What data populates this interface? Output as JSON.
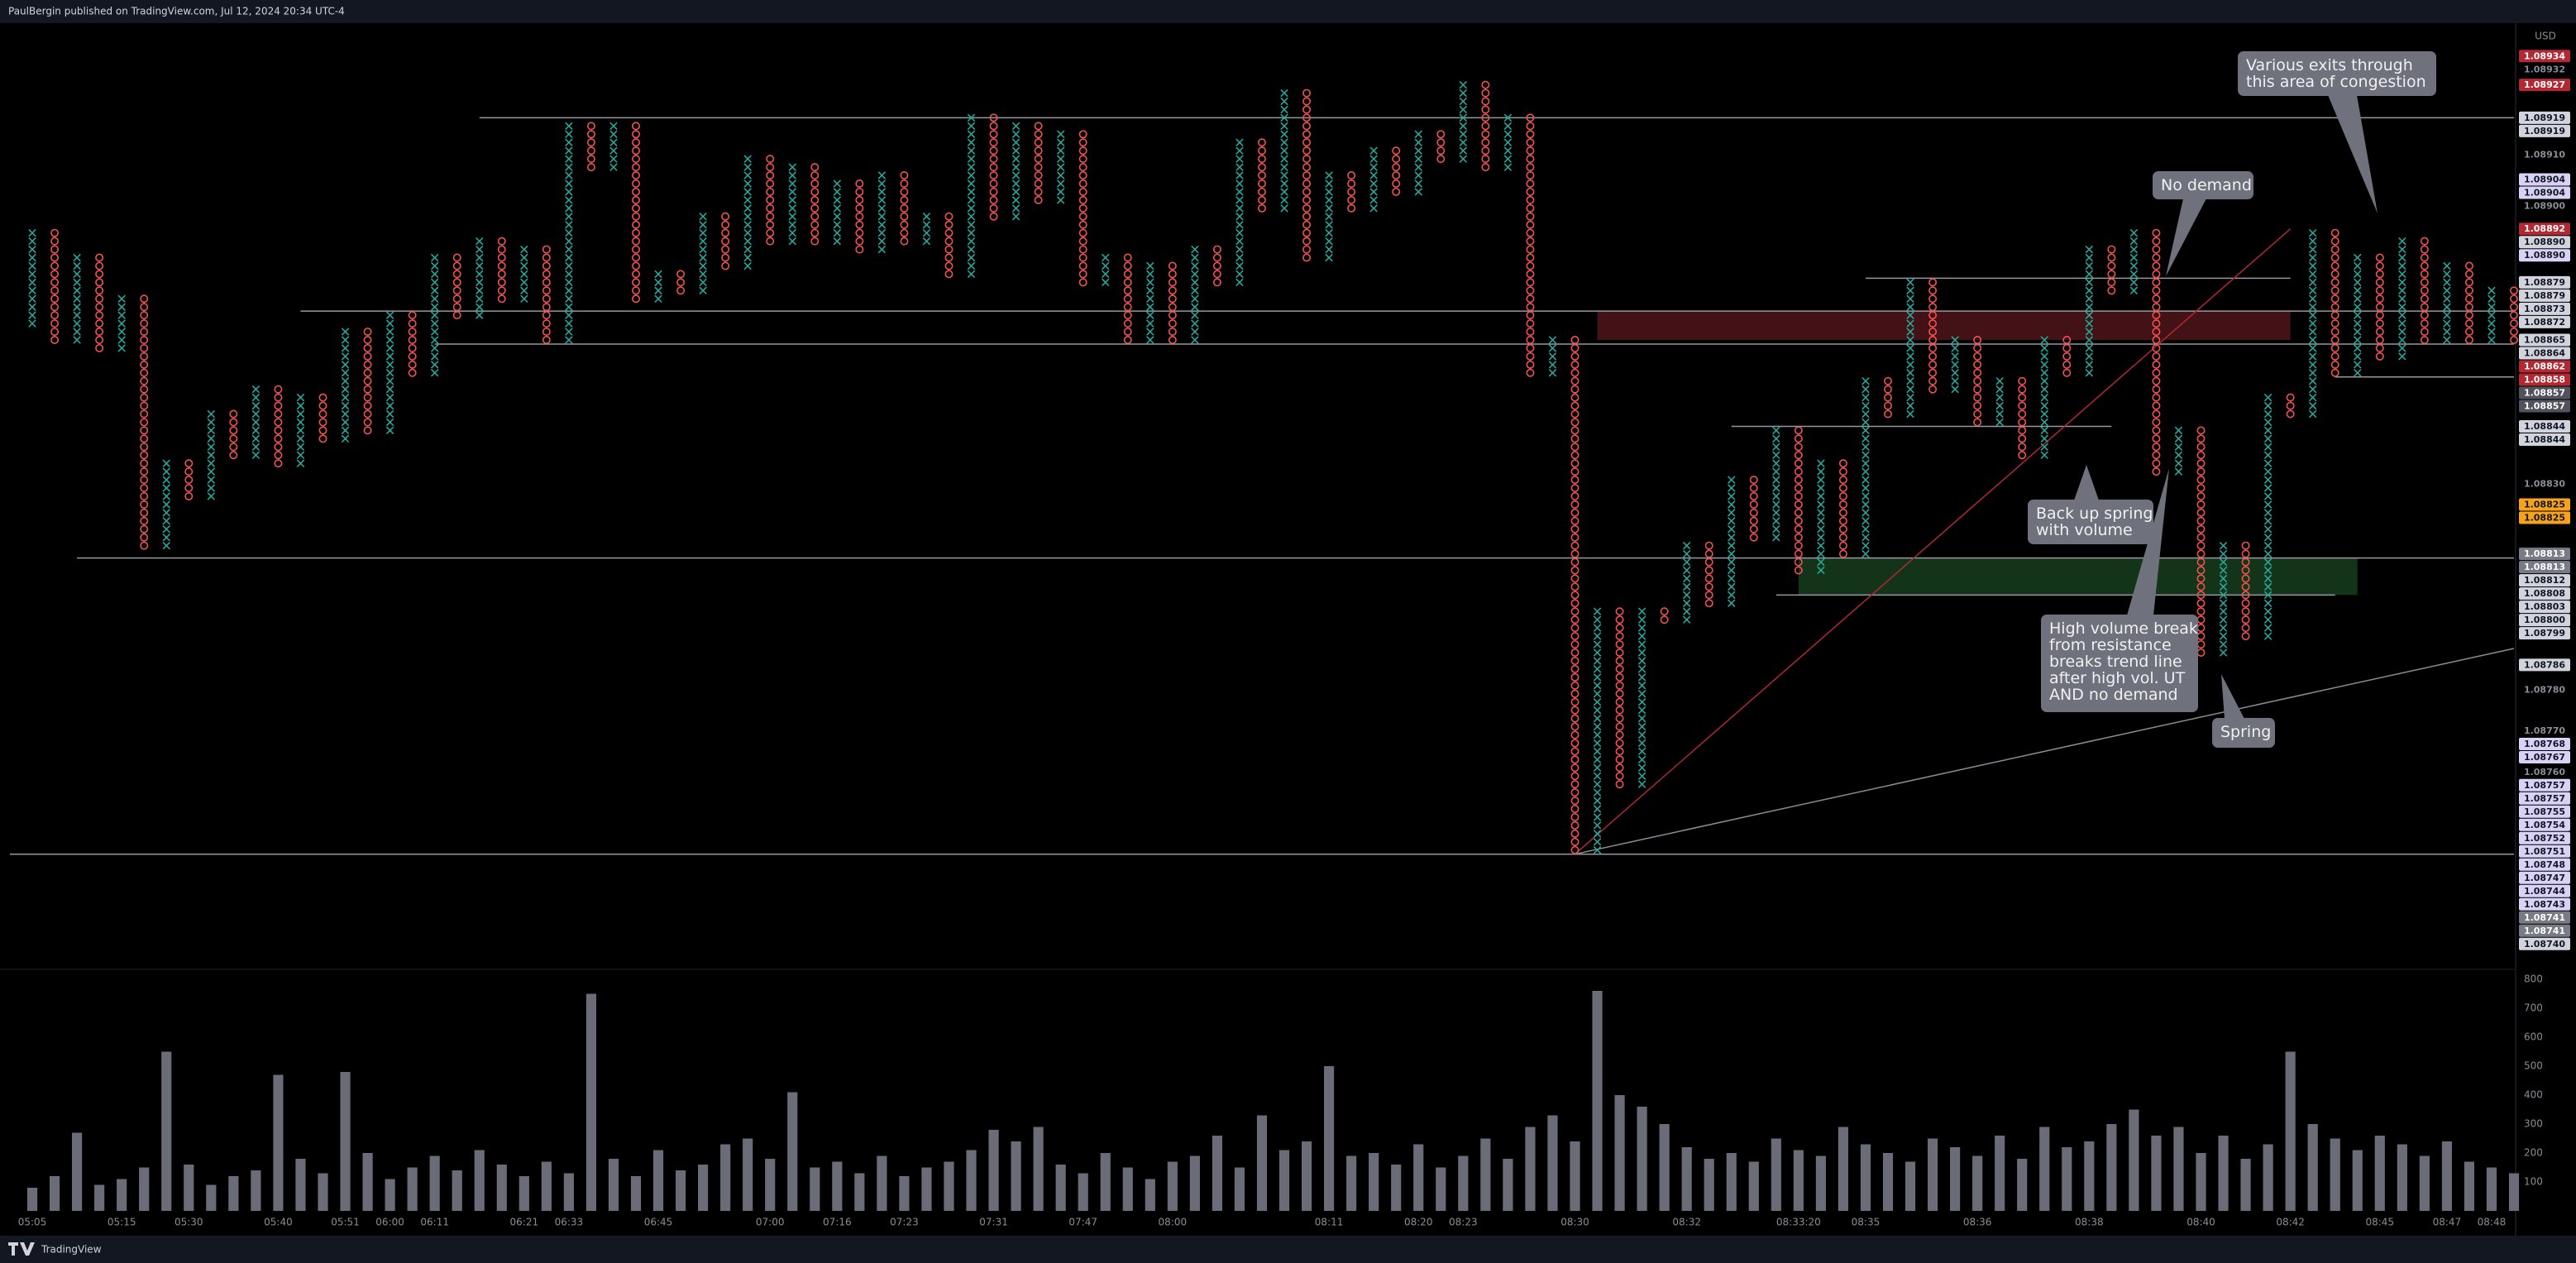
{
  "header": {
    "text": "PaulBergin published on TradingView.com, Jul 12, 2024 20:34 UTC-4"
  },
  "footer": {
    "brand": "TradingView"
  },
  "chart_data": [
    {
      "type": "pnf",
      "currency": "USD",
      "box_size": 2e-05,
      "up_color": "#26a69a",
      "down_color": "#ef5350",
      "ylim": [
        1.08712,
        1.08942
      ],
      "values": [
        1.08868,
        1.08892,
        1.08864,
        1.08886,
        1.08862,
        1.08876,
        1.08814,
        1.08836,
        1.08826,
        1.08848,
        1.08836,
        1.08854,
        1.08834,
        1.08852,
        1.0884,
        1.08868,
        1.08842,
        1.08872,
        1.08856,
        1.08886,
        1.0887,
        1.0889,
        1.08874,
        1.08888,
        1.08864,
        1.08918,
        1.08906,
        1.08918,
        1.08874,
        1.08882,
        1.08876,
        1.08896,
        1.08882,
        1.0891,
        1.08888,
        1.08908,
        1.08888,
        1.08904,
        1.08886,
        1.08906,
        1.08888,
        1.08896,
        1.0888,
        1.0892,
        1.08894,
        1.08918,
        1.08898,
        1.08916,
        1.08878,
        1.08886,
        1.08864,
        1.08884,
        1.08864,
        1.08888,
        1.08878,
        1.08914,
        1.08896,
        1.08926,
        1.08884,
        1.08906,
        1.08896,
        1.08912,
        1.089,
        1.08916,
        1.08908,
        1.08928,
        1.08906,
        1.0892,
        1.08856,
        1.08866,
        1.0874,
        1.088,
        1.08756,
        1.088,
        1.08796,
        1.08816,
        1.088,
        1.08832,
        1.08816,
        1.08844,
        1.08808,
        1.08836,
        1.08812,
        1.08856,
        1.08846,
        1.0888,
        1.08852,
        1.08866,
        1.08844,
        1.08856,
        1.08836,
        1.08866,
        1.08856,
        1.08888,
        1.08876,
        1.08892,
        1.08832,
        1.08844,
        1.08788,
        1.08816,
        1.08792,
        1.08852,
        1.08846,
        1.08892,
        1.08856,
        1.08886,
        1.0886,
        1.0889,
        1.08864,
        1.08884,
        1.08864,
        1.08878,
        1.08864
      ],
      "xticks": [
        {
          "value": 1,
          "label": "05:05"
        },
        {
          "value": 5,
          "label": "05:15"
        },
        {
          "value": 8,
          "label": "05:30"
        },
        {
          "value": 12,
          "label": "05:40"
        },
        {
          "value": 15,
          "label": "05:51"
        },
        {
          "value": 17,
          "label": "06:00"
        },
        {
          "value": 19,
          "label": "06:11"
        },
        {
          "value": 23,
          "label": "06:21"
        },
        {
          "value": 25,
          "label": "06:33"
        },
        {
          "value": 29,
          "label": "06:45"
        },
        {
          "value": 34,
          "label": "07:00"
        },
        {
          "value": 37,
          "label": "07:16"
        },
        {
          "value": 40,
          "label": "07:23"
        },
        {
          "value": 44,
          "label": "07:31"
        },
        {
          "value": 48,
          "label": "07:47"
        },
        {
          "value": 52,
          "label": "08:00"
        },
        {
          "value": 59,
          "label": "08:11"
        },
        {
          "value": 63,
          "label": "08:20"
        },
        {
          "value": 65,
          "label": "08:23"
        },
        {
          "value": 70,
          "label": "08:30"
        },
        {
          "value": 75,
          "label": "08:32"
        },
        {
          "value": 80,
          "label": "08:33:20"
        },
        {
          "value": 83,
          "label": "08:35"
        },
        {
          "value": 88,
          "label": "08:36"
        },
        {
          "value": 93,
          "label": "08:38"
        },
        {
          "value": 98,
          "label": "08:40"
        },
        {
          "value": 102,
          "label": "08:42"
        },
        {
          "value": 106,
          "label": "08:45"
        },
        {
          "value": 109,
          "label": "08:47"
        },
        {
          "value": 111,
          "label": "08:48"
        }
      ],
      "price_labels": [
        {
          "value": 1.08934,
          "style": "red"
        },
        {
          "value": 1.08932,
          "style": "plain"
        },
        {
          "value": 1.08927,
          "style": "red"
        },
        {
          "value": 1.08919,
          "style": "light"
        },
        {
          "value": 1.08919,
          "style": "light"
        },
        {
          "value": 1.0891,
          "label": "1.08910",
          "style": "plain"
        },
        {
          "value": 1.08904,
          "style": "lavender"
        },
        {
          "value": 1.08904,
          "style": "lavender"
        },
        {
          "value": 1.089,
          "label": "1.08900",
          "style": "plain"
        },
        {
          "value": 1.08892,
          "style": "red"
        },
        {
          "value": 1.0889,
          "label": "1.08890",
          "style": "light"
        },
        {
          "value": 1.0889,
          "label": "1.08890",
          "style": "lavender"
        },
        {
          "value": 1.08879,
          "style": "light"
        },
        {
          "value": 1.08879,
          "style": "light"
        },
        {
          "value": 1.08873,
          "style": "light"
        },
        {
          "value": 1.08872,
          "style": "light"
        },
        {
          "value": 1.08865,
          "style": "light"
        },
        {
          "value": 1.08864,
          "style": "light"
        },
        {
          "value": 1.08862,
          "style": "red"
        },
        {
          "value": 1.08858,
          "style": "red"
        },
        {
          "value": 1.08857,
          "style": "dark"
        },
        {
          "value": 1.08857,
          "style": "dark"
        },
        {
          "value": 1.08844,
          "style": "light"
        },
        {
          "value": 1.08844,
          "style": "light"
        },
        {
          "value": 1.0883,
          "label": "1.08830",
          "style": "plain"
        },
        {
          "value": 1.08825,
          "style": "orange"
        },
        {
          "value": 1.08825,
          "style": "orange"
        },
        {
          "value": 1.08813,
          "style": "gray"
        },
        {
          "value": 1.08813,
          "style": "gray"
        },
        {
          "value": 1.08812,
          "style": "light"
        },
        {
          "value": 1.08808,
          "style": "light"
        },
        {
          "value": 1.08803,
          "style": "light"
        },
        {
          "value": 1.088,
          "label": "1.08800",
          "style": "light"
        },
        {
          "value": 1.08799,
          "style": "light"
        },
        {
          "value": 1.08786,
          "style": "light"
        },
        {
          "value": 1.0878,
          "label": "1.08780",
          "style": "plain"
        },
        {
          "value": 1.0877,
          "label": "1.08770",
          "style": "plain"
        },
        {
          "value": 1.08768,
          "style": "lavender"
        },
        {
          "value": 1.08767,
          "style": "lavender"
        },
        {
          "value": 1.0876,
          "label": "1.08760",
          "style": "plain"
        },
        {
          "value": 1.08757,
          "style": "lavender"
        },
        {
          "value": 1.08757,
          "style": "lavender"
        },
        {
          "value": 1.08755,
          "style": "lavender"
        },
        {
          "value": 1.08754,
          "style": "lavender"
        },
        {
          "value": 1.08752,
          "style": "lavender"
        },
        {
          "value": 1.08751,
          "style": "lavender"
        },
        {
          "value": 1.08748,
          "style": "lavender"
        },
        {
          "value": 1.08747,
          "style": "lavender"
        },
        {
          "value": 1.08744,
          "style": "lavender"
        },
        {
          "value": 1.08743,
          "style": "lavender"
        },
        {
          "value": 1.08741,
          "style": "gray"
        },
        {
          "value": 1.08741,
          "style": "gray"
        },
        {
          "value": 1.0874,
          "label": "1.08740",
          "style": "light"
        }
      ],
      "drawings": {
        "levels": [
          {
            "price": 1.08919,
            "from": 21,
            "to": 112
          },
          {
            "price": 1.08872,
            "from": 13,
            "to": 112
          },
          {
            "price": 1.08864,
            "from": 19,
            "to": 112
          },
          {
            "price": 1.08812,
            "from": 3,
            "to": 112
          },
          {
            "price": 1.0874,
            "from": 0,
            "to": 112
          },
          {
            "price": 1.0888,
            "from": 83,
            "to": 102
          },
          {
            "price": 1.08844,
            "from": 77,
            "to": 94
          },
          {
            "price": 1.08803,
            "from": 79,
            "to": 104
          },
          {
            "price": 1.08856,
            "from": 104,
            "to": 112
          }
        ],
        "zones": [
          {
            "top": 1.08872,
            "bottom": 1.08865,
            "from": 71,
            "to": 102,
            "color": "#4a1418"
          },
          {
            "top": 1.08812,
            "bottom": 1.08803,
            "from": 80,
            "to": 105,
            "color": "#163a1c"
          }
        ],
        "trend_lines": [
          {
            "from": [
              70,
              1.0874
            ],
            "to": [
              102,
              1.08892
            ],
            "color": "#b22833"
          },
          {
            "from": [
              70,
              1.0874
            ],
            "to": [
              112,
              1.0879
            ],
            "color": "#8a8d96"
          }
        ]
      },
      "annotations": [
        {
          "lines": [
            "Various exits through",
            "this area of congestion"
          ]
        },
        {
          "lines": [
            "No demand"
          ]
        },
        {
          "lines": [
            "Back up spring",
            "with volume"
          ]
        },
        {
          "lines": [
            "High volume break",
            "from resistance",
            "breaks trend line",
            "after high vol. UT",
            "AND no demand"
          ]
        },
        {
          "lines": [
            "Spring"
          ]
        }
      ]
    },
    {
      "type": "bar",
      "color": "#6a6d78",
      "ylim": [
        0,
        840
      ],
      "yticks": [
        100,
        200,
        300,
        400,
        500,
        600,
        700,
        800
      ],
      "values": [
        80,
        120,
        270,
        90,
        110,
        150,
        550,
        160,
        90,
        120,
        140,
        470,
        180,
        130,
        480,
        200,
        110,
        150,
        190,
        140,
        210,
        160,
        120,
        170,
        130,
        750,
        180,
        120,
        210,
        140,
        160,
        230,
        250,
        180,
        410,
        150,
        170,
        130,
        190,
        120,
        150,
        170,
        210,
        280,
        240,
        290,
        160,
        130,
        200,
        150,
        110,
        170,
        190,
        260,
        150,
        330,
        210,
        240,
        500,
        190,
        200,
        160,
        230,
        150,
        190,
        250,
        180,
        290,
        330,
        240,
        760,
        400,
        360,
        300,
        220,
        180,
        200,
        170,
        250,
        210,
        190,
        290,
        230,
        200,
        170,
        250,
        220,
        190,
        260,
        180,
        290,
        220,
        240,
        300,
        350,
        260,
        290,
        200,
        260,
        180,
        230,
        550,
        300,
        250,
        210,
        260,
        230,
        190,
        240,
        170,
        150,
        130
      ]
    }
  ]
}
